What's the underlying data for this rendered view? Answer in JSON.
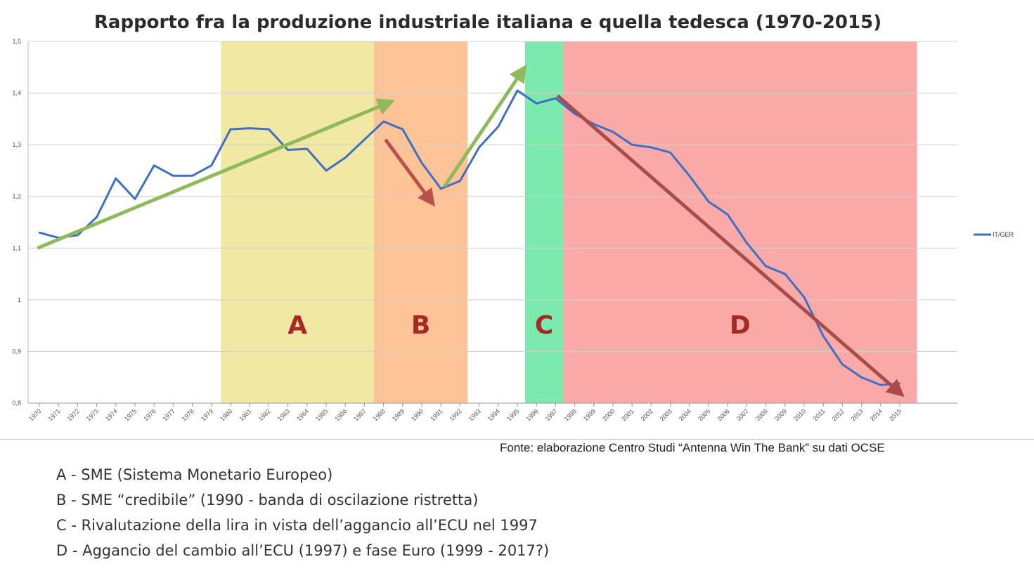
{
  "chart_data": {
    "type": "line",
    "title": "Rapporto fra la produzione industriale italiana e quella tedesca (1970-2015)",
    "xlabel": "",
    "ylabel": "",
    "ylim": [
      0.8,
      1.5
    ],
    "yticks": [
      "0,8",
      "0,9",
      "1",
      "1,1",
      "1,2",
      "1,3",
      "1,4",
      "1,5"
    ],
    "grid": true,
    "legend_position": "right",
    "x": [
      "1970",
      "1971",
      "1972",
      "1973",
      "1974",
      "1975",
      "1976",
      "1977",
      "1978",
      "1979",
      "1980",
      "1981",
      "1982",
      "1983",
      "1984",
      "1985",
      "1986",
      "1987",
      "1988",
      "1989",
      "1990",
      "1991",
      "1992",
      "1993",
      "1994",
      "1995",
      "1996",
      "1997",
      "1998",
      "1999",
      "2000",
      "2001",
      "2002",
      "2003",
      "2004",
      "2005",
      "2006",
      "2007",
      "2008",
      "2009",
      "2010",
      "2011",
      "2012",
      "2013",
      "2014",
      "2015"
    ],
    "series": [
      {
        "name": "IT/GER",
        "color": "#3e6fc4",
        "values": [
          1.13,
          1.12,
          1.125,
          1.16,
          1.235,
          1.195,
          1.26,
          1.24,
          1.24,
          1.26,
          1.33,
          1.332,
          1.33,
          1.29,
          1.292,
          1.25,
          1.275,
          1.31,
          1.345,
          1.33,
          1.265,
          1.215,
          1.23,
          1.295,
          1.335,
          1.405,
          1.38,
          1.39,
          1.36,
          1.34,
          1.325,
          1.3,
          1.295,
          1.285,
          1.24,
          1.19,
          1.165,
          1.11,
          1.065,
          1.05,
          1.005,
          0.93,
          0.875,
          0.85,
          0.835,
          0.838
        ]
      }
    ],
    "bands": [
      {
        "label": "A",
        "from": "1979.5",
        "to": "1987.5",
        "color": "#f0e8a4"
      },
      {
        "label": "B",
        "from": "1987.5",
        "to": "1992.4",
        "color": "#fbc396"
      },
      {
        "label": "C",
        "from": "1995.4",
        "to": "1997.4",
        "color": "#7ce9ad"
      },
      {
        "label": "D",
        "from": "1997.4",
        "to": "2015.9",
        "color": "#f9aaa8"
      }
    ],
    "arrows": [
      {
        "from": [
          "1969.9",
          1.1
        ],
        "to": [
          "1988.3",
          1.382
        ],
        "color": "#8fba5c"
      },
      {
        "from": [
          "1988.1",
          1.31
        ],
        "to": [
          "1990.5",
          1.19
        ],
        "color": "#b9514d"
      },
      {
        "from": [
          "1991.2",
          1.22
        ],
        "to": [
          "1995.3",
          1.445
        ],
        "color": "#8fba5c"
      },
      {
        "from": [
          "1997.1",
          1.395
        ],
        "to": [
          "2015.0",
          0.82
        ],
        "color": "#a84c4a"
      }
    ],
    "band_label_color": "#a52a26",
    "source": "Fonte: elaborazione Centro Studi “Antenna Win The Bank” su dati OCSE"
  },
  "notes": [
    "A - SME (Sistema Monetario Europeo)",
    "B - SME “credibile” (1990 - banda di oscilazione ristretta)",
    "C - Rivalutazione della lira in vista dell’aggancio all’ECU nel 1997",
    "D - Aggancio del cambio all’ECU (1997) e fase Euro (1999 - 2017?)"
  ]
}
